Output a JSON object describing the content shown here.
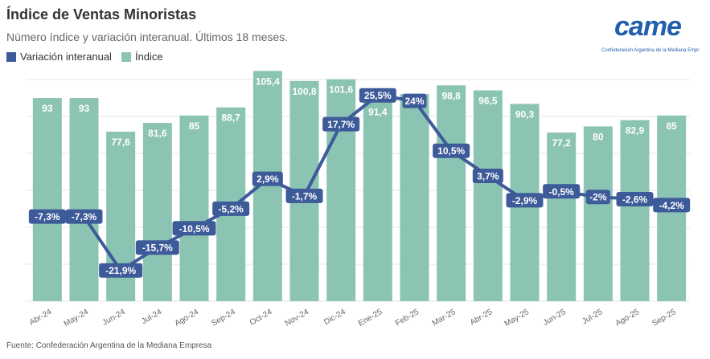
{
  "header": {
    "title": "Índice de Ventas Minoristas",
    "subtitle": "Número índice y variación interanual. Últimos 18 meses."
  },
  "logo": {
    "wordmark": "came",
    "tagline": "Confederación Argentina de la Mediana Empr"
  },
  "footer": {
    "source": "Fuente: Confederación Argentina de la Mediana Empresa"
  },
  "colors": {
    "bar": "#8cc4b3",
    "line": "#3d5a99",
    "grid": "#e4e4e4"
  },
  "chart_data": {
    "type": "bar",
    "categories": [
      "Abr-24",
      "May-24",
      "Jun-24",
      "Jul-24",
      "Ago-24",
      "Sep-24",
      "Oct-24",
      "Nov-24",
      "Dic-24",
      "Ene-25",
      "Feb-25",
      "Mar-25",
      "Abr-25",
      "May-25",
      "Jun-25",
      "Jul-25",
      "Ago-25",
      "Sep-25"
    ],
    "legend": [
      {
        "name": "Variación interanual",
        "color": "#3d5a99"
      },
      {
        "name": "Índice",
        "color": "#8cc4b3"
      }
    ],
    "legend_position": "top-left",
    "grid": true,
    "series": [
      {
        "name": "Índice",
        "type": "bar",
        "values": [
          93,
          93,
          77.6,
          81.6,
          85,
          88.7,
          105.4,
          100.8,
          101.6,
          91.4,
          94.8,
          98.8,
          96.5,
          90.3,
          77.2,
          80,
          82.9,
          85
        ],
        "labels": [
          "93",
          "93",
          "77,6",
          "81,6",
          "85",
          "88,7",
          "105,4",
          "100,8",
          "101,6",
          "91,4",
          "94,8",
          "98,8",
          "96,5",
          "90,3",
          "77,2",
          "80",
          "82,9",
          "85"
        ]
      },
      {
        "name": "Variación interanual",
        "type": "line",
        "values": [
          -7.3,
          -7.3,
          -21.9,
          -15.7,
          -10.5,
          -5.2,
          2.9,
          -1.7,
          17.7,
          25.5,
          24,
          10.5,
          3.7,
          -2.9,
          -0.5,
          -2,
          -2.6,
          -4.2
        ],
        "labels": [
          "-7,3%",
          "-7,3%",
          "-21,9%",
          "-15,7%",
          "-10,5%",
          "-5,2%",
          "2,9%",
          "-1,7%",
          "17,7%",
          "25,5%",
          "24%",
          "10,5%",
          "3,7%",
          "-2,9%",
          "-0,5%",
          "-2%",
          "-2,6%",
          "-4,2%"
        ]
      }
    ]
  }
}
